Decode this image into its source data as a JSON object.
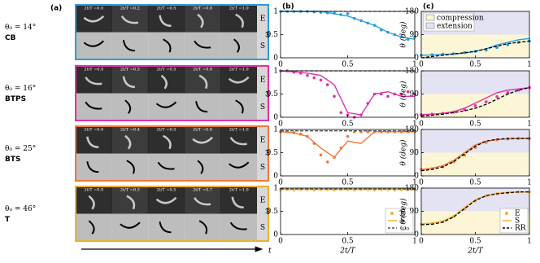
{
  "panel_a": {
    "label": "(a)",
    "time_label": "t",
    "rows": [
      {
        "theta": "θ₀ = 14°",
        "name": "CB",
        "color": "#2a9de0",
        "frames": [
          "2t/T =0.0",
          "2t/T =0.2",
          "2t/T =0.5",
          "2t/T =0.8",
          "2t/T =1.0"
        ],
        "strips": [
          "E",
          "S"
        ]
      },
      {
        "theta": "θ₀ = 16°",
        "name": "BTPS",
        "color": "#e032a8",
        "frames": [
          "2t/T =0.0",
          "2t/T =0.3",
          "2t/T =0.5",
          "2t/T =0.8",
          "2t/T =1.0"
        ],
        "strips": [
          "E",
          "S"
        ]
      },
      {
        "theta": "θ₀ = 25°",
        "name": "BTS",
        "color": "#f07838",
        "frames": [
          "2t/T =0.0",
          "2t/T =0.4",
          "2t/T =0.5",
          "2t/T =0.6",
          "2t/T =1.0"
        ],
        "strips": [
          "E",
          "S"
        ]
      },
      {
        "theta": "θ₀ = 46°",
        "name": "T",
        "color": "#f0b030",
        "frames": [
          "2t/T =0.0",
          "2t/T =0.3",
          "2t/T =0.5",
          "2t/T =0.7",
          "2t/T =1.0"
        ],
        "strips": [
          "E",
          "S"
        ]
      }
    ]
  },
  "chart_data": [
    {
      "type": "line",
      "panel_label": "(b)",
      "ylabel": "ω",
      "xlim": [
        0,
        1
      ],
      "xticks": [
        0,
        0.5,
        1
      ],
      "ylim": [
        0,
        1
      ],
      "yticks": [
        0,
        0.5,
        1
      ],
      "series": [
        {
          "style": "dots",
          "color": "#2a9de0",
          "x": [
            0,
            0.05,
            0.1,
            0.15,
            0.2,
            0.25,
            0.3,
            0.35,
            0.4,
            0.45,
            0.5,
            0.55,
            0.6,
            0.65,
            0.7,
            0.75,
            0.8,
            0.85,
            0.9,
            0.95,
            1
          ],
          "values": [
            1,
            1,
            1,
            1,
            1,
            0.99,
            0.98,
            0.97,
            0.96,
            0.93,
            0.95,
            0.85,
            0.8,
            0.75,
            0.7,
            0.6,
            0.55,
            0.5,
            0.45,
            0.4,
            0.45
          ]
        },
        {
          "style": "solid",
          "color": "#2a9de0",
          "x": [
            0,
            0.1,
            0.2,
            0.3,
            0.4,
            0.5,
            0.6,
            0.7,
            0.8,
            0.9,
            1
          ],
          "values": [
            1,
            1,
            1,
            1,
            0.95,
            0.9,
            0.8,
            0.7,
            0.55,
            0.45,
            0.4
          ]
        },
        {
          "style": "dashed",
          "color": "#555555",
          "x": [
            0,
            1
          ],
          "values": [
            1,
            1
          ]
        }
      ]
    },
    {
      "type": "line",
      "ylabel": "ω",
      "xlim": [
        0,
        1
      ],
      "xticks": [
        0,
        0.5,
        1
      ],
      "ylim": [
        0,
        1
      ],
      "yticks": [
        0,
        0.5,
        1
      ],
      "series": [
        {
          "style": "dots",
          "color": "#e032a8",
          "x": [
            0,
            0.05,
            0.1,
            0.15,
            0.2,
            0.25,
            0.3,
            0.35,
            0.4,
            0.45,
            0.5,
            0.55,
            0.6,
            0.65,
            0.7,
            0.75,
            0.8,
            0.85,
            0.9,
            0.95,
            1
          ],
          "values": [
            1,
            1,
            0.97,
            0.95,
            0.9,
            0.85,
            0.8,
            0.7,
            0.45,
            0.1,
            0.05,
            0,
            0.05,
            0.3,
            0.5,
            0.5,
            0.45,
            0.5,
            0.5,
            0.55,
            0.5
          ]
        },
        {
          "style": "solid",
          "color": "#e032a8",
          "x": [
            0,
            0.1,
            0.2,
            0.3,
            0.4,
            0.5,
            0.6,
            0.7,
            0.8,
            0.9,
            1
          ],
          "values": [
            1,
            0.98,
            0.95,
            0.9,
            0.7,
            0.1,
            0.05,
            0.5,
            0.55,
            0.45,
            0.45
          ]
        },
        {
          "style": "dashed",
          "color": "#555555",
          "x": [
            0,
            1
          ],
          "values": [
            1,
            1
          ]
        }
      ]
    },
    {
      "type": "line",
      "ylabel": "ω",
      "xlim": [
        0,
        1
      ],
      "xticks": [
        0,
        0.5,
        1
      ],
      "ylim": [
        0,
        1
      ],
      "yticks": [
        0,
        0.5,
        1
      ],
      "series": [
        {
          "style": "dots",
          "color": "#f07838",
          "x": [
            0,
            0.05,
            0.1,
            0.15,
            0.2,
            0.25,
            0.3,
            0.35,
            0.4,
            0.45,
            0.5,
            0.55,
            0.6,
            0.65,
            0.7,
            0.75,
            0.8,
            0.85,
            0.9,
            0.95,
            1
          ],
          "values": [
            0.95,
            0.95,
            0.93,
            0.9,
            0.85,
            0.7,
            0.45,
            0.3,
            0.4,
            0.6,
            0.85,
            0.95,
            0.95,
            0.95,
            0.95,
            0.95,
            0.95,
            0.95,
            0.95,
            0.95,
            0.95
          ]
        },
        {
          "style": "solid",
          "color": "#f07838",
          "x": [
            0,
            0.1,
            0.2,
            0.3,
            0.4,
            0.5,
            0.6,
            0.7,
            0.8,
            0.9,
            1
          ],
          "values": [
            0.95,
            0.93,
            0.85,
            0.6,
            0.4,
            0.75,
            0.7,
            0.95,
            0.95,
            0.95,
            0.95
          ]
        },
        {
          "style": "dashed",
          "color": "#555555",
          "x": [
            0,
            1
          ],
          "values": [
            0.97,
            0.97
          ]
        }
      ]
    },
    {
      "type": "line",
      "ylabel": "ω",
      "xlabel": "2t/T",
      "xlim": [
        0,
        1
      ],
      "xticks": [
        0,
        0.5,
        1
      ],
      "ylim": [
        0,
        1
      ],
      "yticks": [
        0,
        0.5,
        1
      ],
      "legend": "lower right",
      "series": [
        {
          "name": "E",
          "style": "dots",
          "color": "#f0b030",
          "x": [
            0,
            0.05,
            0.1,
            0.15,
            0.2,
            0.25,
            0.3,
            0.35,
            0.4,
            0.45,
            0.5,
            0.55,
            0.6,
            0.65,
            0.7,
            0.75,
            0.8,
            0.85,
            0.9,
            0.95,
            1
          ],
          "values": [
            0.97,
            0.97,
            0.96,
            0.97,
            0.97,
            0.96,
            0.97,
            0.97,
            0.96,
            0.97,
            0.97,
            0.96,
            0.97,
            0.97,
            0.96,
            0.97,
            0.97,
            0.96,
            0.97,
            0.97,
            0.97
          ]
        },
        {
          "name": "S",
          "style": "solid",
          "color": "#f0b030",
          "x": [
            0,
            0.1,
            0.2,
            0.3,
            0.4,
            0.5,
            0.6,
            0.7,
            0.8,
            0.9,
            1
          ],
          "values": [
            0.97,
            0.97,
            0.97,
            0.97,
            0.97,
            0.97,
            0.97,
            0.97,
            0.97,
            0.97,
            0.97
          ]
        },
        {
          "name": "ω₀",
          "style": "dashed",
          "color": "#555555",
          "x": [
            0,
            1
          ],
          "values": [
            0.98,
            0.98
          ]
        }
      ]
    },
    {
      "type": "line",
      "panel_label": "(c)",
      "ylabel": "θ (deg)",
      "xlim": [
        0,
        1
      ],
      "xticks": [
        0,
        0.5,
        1
      ],
      "ylim": [
        0,
        180
      ],
      "yticks": [
        0,
        90,
        180
      ],
      "regions": [
        {
          "label": "compression",
          "from": 0,
          "to": 90,
          "color": "#fcf6d6"
        },
        {
          "label": "extension",
          "from": 90,
          "to": 180,
          "color": "#e4e3f4"
        }
      ],
      "series": [
        {
          "style": "dots",
          "color": "#2a9de0",
          "x": [
            0,
            0.1,
            0.2,
            0.3,
            0.4,
            0.5,
            0.6,
            0.7,
            0.8,
            0.9,
            1
          ],
          "values": [
            10,
            12,
            14,
            16,
            20,
            25,
            30,
            40,
            50,
            60,
            65
          ]
        },
        {
          "style": "solid",
          "color": "#2a9de0",
          "x": [
            0,
            0.1,
            0.2,
            0.3,
            0.4,
            0.5,
            0.6,
            0.7,
            0.8,
            0.9,
            1
          ],
          "values": [
            10,
            11,
            13,
            15,
            18,
            25,
            35,
            50,
            60,
            70,
            75
          ]
        },
        {
          "style": "dashed",
          "color": "#000000",
          "x": [
            0,
            0.1,
            0.2,
            0.3,
            0.4,
            0.5,
            0.6,
            0.7,
            0.8,
            0.9,
            1
          ],
          "values": [
            0,
            5,
            10,
            15,
            20,
            25,
            35,
            45,
            55,
            60,
            65
          ]
        }
      ]
    },
    {
      "type": "line",
      "ylabel": "θ (deg)",
      "xlim": [
        0,
        1
      ],
      "xticks": [
        0,
        0.5,
        1
      ],
      "ylim": [
        0,
        180
      ],
      "yticks": [
        0,
        90,
        180
      ],
      "regions": [
        {
          "from": 0,
          "to": 90,
          "color": "#fcf6d6"
        },
        {
          "from": 90,
          "to": 180,
          "color": "#e4e3f4"
        }
      ],
      "series": [
        {
          "style": "dots",
          "color": "#e032a8",
          "x": [
            0,
            0.1,
            0.2,
            0.3,
            0.4,
            0.5,
            0.6,
            0.7,
            0.8,
            0.9,
            1
          ],
          "values": [
            10,
            12,
            15,
            20,
            30,
            45,
            60,
            80,
            95,
            105,
            115
          ]
        },
        {
          "style": "solid",
          "color": "#e032a8",
          "x": [
            0,
            0.1,
            0.2,
            0.3,
            0.4,
            0.5,
            0.6,
            0.7,
            0.8,
            0.9,
            1
          ],
          "values": [
            10,
            12,
            15,
            22,
            35,
            55,
            75,
            95,
            105,
            110,
            115
          ]
        },
        {
          "style": "dashed",
          "color": "#000000",
          "x": [
            0,
            0.1,
            0.2,
            0.3,
            0.4,
            0.5,
            0.6,
            0.7,
            0.8,
            0.9,
            1
          ],
          "values": [
            5,
            8,
            12,
            18,
            25,
            35,
            50,
            70,
            90,
            105,
            115
          ]
        }
      ]
    },
    {
      "type": "line",
      "ylabel": "θ (deg)",
      "xlim": [
        0,
        1
      ],
      "xticks": [
        0,
        0.5,
        1
      ],
      "ylim": [
        0,
        180
      ],
      "yticks": [
        0,
        90,
        180
      ],
      "regions": [
        {
          "from": 0,
          "to": 90,
          "color": "#fcf6d6"
        },
        {
          "from": 90,
          "to": 180,
          "color": "#e4e3f4"
        }
      ],
      "series": [
        {
          "style": "dots",
          "color": "#f07838",
          "x": [
            0,
            0.1,
            0.2,
            0.3,
            0.4,
            0.5,
            0.6,
            0.7,
            0.8,
            0.9,
            1
          ],
          "values": [
            25,
            28,
            35,
            55,
            80,
            110,
            130,
            140,
            143,
            145,
            145
          ]
        },
        {
          "style": "solid",
          "color": "#f07838",
          "x": [
            0,
            0.1,
            0.2,
            0.3,
            0.4,
            0.5,
            0.6,
            0.7,
            0.8,
            0.9,
            1
          ],
          "values": [
            25,
            30,
            40,
            60,
            90,
            120,
            135,
            140,
            143,
            145,
            145
          ]
        },
        {
          "style": "dashed",
          "color": "#000000",
          "x": [
            0,
            0.1,
            0.2,
            0.3,
            0.4,
            0.5,
            0.6,
            0.7,
            0.8,
            0.9,
            1
          ],
          "values": [
            20,
            25,
            35,
            55,
            85,
            115,
            135,
            142,
            145,
            145,
            145
          ]
        }
      ]
    },
    {
      "type": "line",
      "ylabel": "θ (deg)",
      "xlabel": "2t/T",
      "xlim": [
        0,
        1
      ],
      "xticks": [
        0,
        0.5,
        1
      ],
      "ylim": [
        0,
        180
      ],
      "yticks": [
        0,
        90,
        180
      ],
      "legend": "lower right",
      "regions": [
        {
          "from": 0,
          "to": 90,
          "color": "#fcf6d6"
        },
        {
          "from": 90,
          "to": 180,
          "color": "#e4e3f4"
        }
      ],
      "series": [
        {
          "name": "E",
          "style": "dots",
          "color": "#f0b030",
          "x": [
            0,
            0.1,
            0.2,
            0.3,
            0.4,
            0.5,
            0.6,
            0.7,
            0.8,
            0.9,
            1
          ],
          "values": [
            40,
            42,
            50,
            70,
            100,
            130,
            150,
            158,
            162,
            165,
            165
          ]
        },
        {
          "name": "S",
          "style": "solid",
          "color": "#f0b030",
          "x": [
            0,
            0.1,
            0.2,
            0.3,
            0.4,
            0.5,
            0.6,
            0.7,
            0.8,
            0.9,
            1
          ],
          "values": [
            42,
            44,
            52,
            72,
            105,
            135,
            152,
            160,
            163,
            165,
            165
          ]
        },
        {
          "name": "RR",
          "style": "dashed",
          "color": "#000000",
          "x": [
            0,
            0.1,
            0.2,
            0.3,
            0.4,
            0.5,
            0.6,
            0.7,
            0.8,
            0.9,
            1
          ],
          "values": [
            38,
            40,
            48,
            68,
            100,
            132,
            150,
            158,
            162,
            165,
            165
          ]
        }
      ]
    }
  ]
}
